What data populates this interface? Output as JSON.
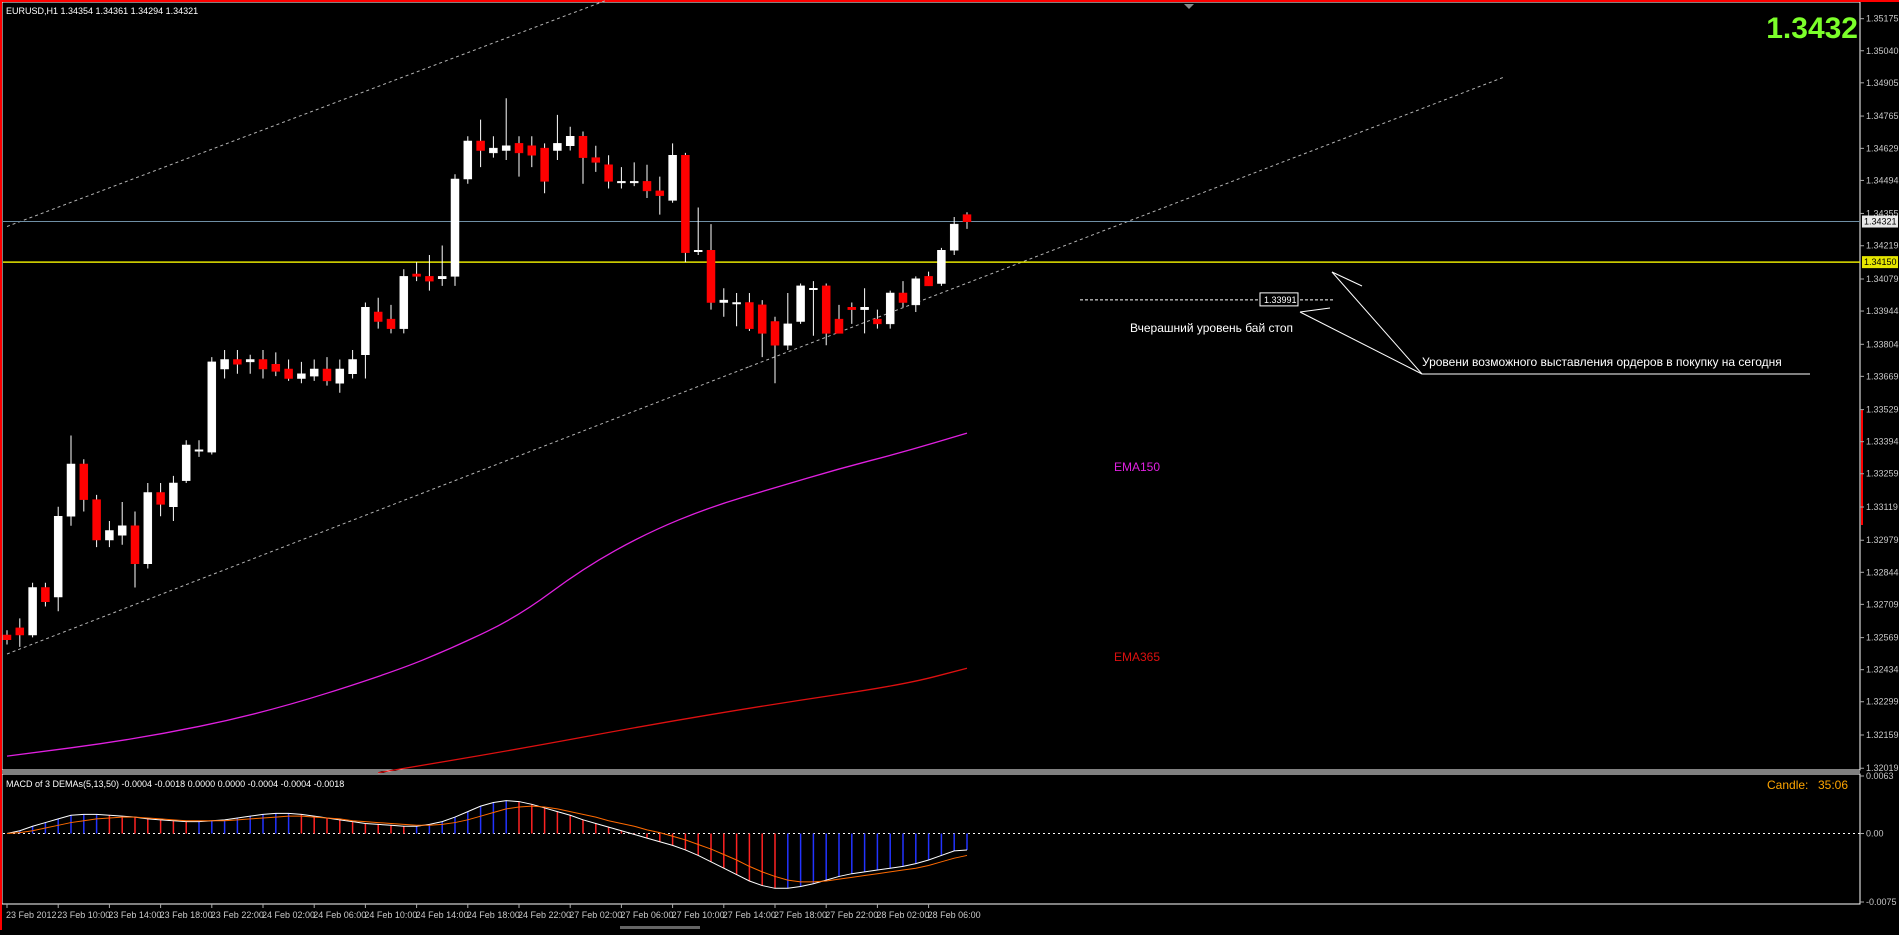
{
  "header": {
    "symbol_info": "EURUSD,H1  1.34354 1.34361 1.34294 1.34321",
    "big_price": "1.3432"
  },
  "colors": {
    "background": "#000000",
    "bull": "#ffffff",
    "bear": "#ff0000",
    "axis_text": "#c8c8c8",
    "channel": "#b4b4b4",
    "yellow_level": "#e6e600",
    "bid_line": "#6f8fa5",
    "ema150": "#e020e0",
    "ema365": "#dd1010",
    "macd_hist_pos": "#2233ff",
    "macd_hist_neg": "#ff2222",
    "macd_line": "#ffffff",
    "signal_line": "#ff6a00",
    "candle_timer": "#ffa500",
    "big_price": "#7cff2a"
  },
  "chart_data": {
    "type": "candlestick",
    "symbol": "EURUSD",
    "timeframe": "H1",
    "ylim": [
      1.3202,
      1.3522
    ],
    "y_ticks": [
      "1.35175",
      "1.35040",
      "1.34905",
      "1.34765",
      "1.34629",
      "1.34494",
      "1.34355",
      "1.34219",
      "1.34079",
      "1.33944",
      "1.33804",
      "1.33669",
      "1.33529",
      "1.33394",
      "1.33259",
      "1.33119",
      "1.32979",
      "1.32844",
      "1.32709",
      "1.32569",
      "1.32434",
      "1.32299",
      "1.32159",
      "1.32019"
    ],
    "x_ticks": [
      "23 Feb 2012",
      "23 Feb 10:00",
      "23 Feb 14:00",
      "23 Feb 18:00",
      "23 Feb 22:00",
      "24 Feb 02:00",
      "24 Feb 06:00",
      "24 Feb 10:00",
      "24 Feb 14:00",
      "24 Feb 18:00",
      "24 Feb 22:00",
      "27 Feb 02:00",
      "27 Feb 06:00",
      "27 Feb 10:00",
      "27 Feb 14:00",
      "27 Feb 18:00",
      "27 Feb 22:00",
      "28 Feb 02:00",
      "28 Feb 06:00"
    ],
    "candles": [
      [
        1.3258,
        1.326,
        1.3254,
        1.3256
      ],
      [
        1.3261,
        1.3265,
        1.3253,
        1.3258
      ],
      [
        1.3258,
        1.328,
        1.3257,
        1.3278
      ],
      [
        1.3278,
        1.328,
        1.327,
        1.3272
      ],
      [
        1.3274,
        1.3312,
        1.3268,
        1.3308
      ],
      [
        1.3308,
        1.3342,
        1.3304,
        1.333
      ],
      [
        1.333,
        1.3332,
        1.331,
        1.3315
      ],
      [
        1.3315,
        1.3317,
        1.3295,
        1.3298
      ],
      [
        1.3298,
        1.3306,
        1.3295,
        1.3302
      ],
      [
        1.33,
        1.3314,
        1.3296,
        1.3304
      ],
      [
        1.3304,
        1.331,
        1.3278,
        1.3288
      ],
      [
        1.3288,
        1.3322,
        1.3286,
        1.3318
      ],
      [
        1.3318,
        1.3322,
        1.3308,
        1.3313
      ],
      [
        1.3312,
        1.3325,
        1.3306,
        1.3322
      ],
      [
        1.3323,
        1.334,
        1.3322,
        1.3338
      ],
      [
        1.3336,
        1.334,
        1.3333,
        1.3336
      ],
      [
        1.3335,
        1.3375,
        1.3334,
        1.3373
      ],
      [
        1.337,
        1.3378,
        1.3366,
        1.3374
      ],
      [
        1.3374,
        1.3378,
        1.3368,
        1.3372
      ],
      [
        1.3373,
        1.3376,
        1.3368,
        1.3374
      ],
      [
        1.3374,
        1.3378,
        1.3366,
        1.337
      ],
      [
        1.3372,
        1.3377,
        1.3367,
        1.3369
      ],
      [
        1.337,
        1.3374,
        1.3365,
        1.3366
      ],
      [
        1.3366,
        1.3373,
        1.3364,
        1.3368
      ],
      [
        1.3367,
        1.3374,
        1.3365,
        1.337
      ],
      [
        1.337,
        1.3375,
        1.3363,
        1.3365
      ],
      [
        1.3364,
        1.3374,
        1.336,
        1.337
      ],
      [
        1.3368,
        1.3378,
        1.3366,
        1.3374
      ],
      [
        1.3376,
        1.3398,
        1.3366,
        1.3396
      ],
      [
        1.3394,
        1.34,
        1.3387,
        1.339
      ],
      [
        1.3391,
        1.3397,
        1.3385,
        1.3387
      ],
      [
        1.3387,
        1.3412,
        1.3385,
        1.3409
      ],
      [
        1.341,
        1.3415,
        1.3407,
        1.3409
      ],
      [
        1.3409,
        1.3418,
        1.3403,
        1.3407
      ],
      [
        1.3408,
        1.3422,
        1.3405,
        1.3409
      ],
      [
        1.3409,
        1.3452,
        1.3405,
        1.345
      ],
      [
        1.345,
        1.3468,
        1.3448,
        1.3466
      ],
      [
        1.3466,
        1.3475,
        1.3455,
        1.3462
      ],
      [
        1.3461,
        1.3468,
        1.3459,
        1.3463
      ],
      [
        1.3462,
        1.3484,
        1.3458,
        1.3464
      ],
      [
        1.3465,
        1.3468,
        1.3451,
        1.3461
      ],
      [
        1.3464,
        1.3468,
        1.3455,
        1.346
      ],
      [
        1.3463,
        1.3465,
        1.3444,
        1.3449
      ],
      [
        1.3462,
        1.3477,
        1.3458,
        1.3465
      ],
      [
        1.3464,
        1.3472,
        1.3462,
        1.3468
      ],
      [
        1.3468,
        1.347,
        1.3448,
        1.3459
      ],
      [
        1.3459,
        1.3464,
        1.3453,
        1.3457
      ],
      [
        1.3456,
        1.346,
        1.3446,
        1.3449
      ],
      [
        1.3449,
        1.3455,
        1.3446,
        1.3449
      ],
      [
        1.3449,
        1.3457,
        1.3447,
        1.3449
      ],
      [
        1.3449,
        1.3456,
        1.3442,
        1.3445
      ],
      [
        1.3445,
        1.3451,
        1.3435,
        1.3443
      ],
      [
        1.3441,
        1.3465,
        1.344,
        1.346
      ],
      [
        1.346,
        1.3461,
        1.3415,
        1.3419
      ],
      [
        1.342,
        1.3438,
        1.3418,
        1.342
      ],
      [
        1.342,
        1.3431,
        1.3395,
        1.3398
      ],
      [
        1.3398,
        1.3404,
        1.3392,
        1.3399
      ],
      [
        1.3398,
        1.3402,
        1.3388,
        1.3398
      ],
      [
        1.3398,
        1.3402,
        1.3386,
        1.3387
      ],
      [
        1.3397,
        1.3399,
        1.3375,
        1.3385
      ],
      [
        1.339,
        1.3392,
        1.3364,
        1.338
      ],
      [
        1.338,
        1.3402,
        1.3378,
        1.3389
      ],
      [
        1.339,
        1.3406,
        1.3389,
        1.3405
      ],
      [
        1.3404,
        1.3407,
        1.3384,
        1.3404
      ],
      [
        1.3405,
        1.3406,
        1.338,
        1.3385
      ],
      [
        1.3391,
        1.3397,
        1.3387,
        1.3385
      ],
      [
        1.3396,
        1.3398,
        1.3389,
        1.3395
      ],
      [
        1.3395,
        1.3404,
        1.3385,
        1.3396
      ],
      [
        1.3391,
        1.3395,
        1.3387,
        1.3389
      ],
      [
        1.3389,
        1.3403,
        1.3387,
        1.3402
      ],
      [
        1.3402,
        1.3407,
        1.3396,
        1.3398
      ],
      [
        1.3397,
        1.3409,
        1.3394,
        1.3408
      ],
      [
        1.3409,
        1.3411,
        1.3405,
        1.3405
      ],
      [
        1.3406,
        1.3421,
        1.3405,
        1.342
      ],
      [
        1.342,
        1.3434,
        1.3418,
        1.3431
      ],
      [
        1.3435,
        1.3436,
        1.3429,
        1.3432
      ]
    ],
    "ema150": [
      [
        0,
        1.3207
      ],
      [
        10,
        1.3214
      ],
      [
        20,
        1.3225
      ],
      [
        30,
        1.3242
      ],
      [
        35,
        1.3253
      ],
      [
        40,
        1.3266
      ],
      [
        45,
        1.3286
      ],
      [
        50,
        1.3301
      ],
      [
        55,
        1.3312
      ],
      [
        60,
        1.332
      ],
      [
        65,
        1.3328
      ],
      [
        70,
        1.3335
      ],
      [
        75,
        1.3343
      ]
    ],
    "ema365": [
      [
        29,
        1.32
      ],
      [
        40,
        1.321
      ],
      [
        50,
        1.322
      ],
      [
        60,
        1.3229
      ],
      [
        70,
        1.3237
      ],
      [
        75,
        1.3244
      ]
    ],
    "channel_upper": [
      [
        0,
        1.343
      ],
      [
        59,
        1.355
      ]
    ],
    "channel_lower_1": [
      [
        0,
        1.325
      ],
      [
        58,
        1.3371
      ]
    ],
    "channel_lower_2": [
      [
        58,
        1.3371
      ],
      [
        117,
        1.3493
      ]
    ],
    "yellow_level": 1.3415,
    "yellow_level_label": "1.34150",
    "bid_level": 1.34321,
    "bid_label": "1.34321",
    "stop_level": 1.33991,
    "stop_label": "1.33991",
    "annotations": {
      "ema150_label": "EMA150",
      "ema365_label": "EMA365",
      "stop_note": "Вчерашний уровень бай стоп",
      "orders_note": "Уровени возможного выставления ордеров в покупку на сегодня"
    }
  },
  "macd": {
    "title": "MACD of 3 DEMAs(5,13,50) -0.0004 -0.0018 0.0000 0.0000 -0.0004 -0.0004 -0.0018",
    "candle_label": "Candle:",
    "candle_time": "35:06",
    "y_ticks": [
      "0.0063",
      "0.00",
      "-0.0075"
    ],
    "ylim": [
      -0.0075,
      0.0063
    ],
    "hist": [
      0.0,
      0.0003,
      0.0008,
      0.0012,
      0.0016,
      0.002,
      0.0021,
      0.0021,
      0.002,
      0.0019,
      0.0018,
      0.0016,
      0.0015,
      0.0014,
      0.0013,
      0.0013,
      0.0014,
      0.0015,
      0.0017,
      0.0019,
      0.0021,
      0.0022,
      0.0022,
      0.0021,
      0.0019,
      0.0017,
      0.0015,
      0.0013,
      0.0011,
      0.001,
      0.0009,
      0.0008,
      0.0008,
      0.001,
      0.0013,
      0.0018,
      0.0024,
      0.003,
      0.0034,
      0.0036,
      0.0035,
      0.0032,
      0.0028,
      0.0024,
      0.002,
      0.0015,
      0.0011,
      0.0007,
      0.0003,
      -0.0001,
      -0.0005,
      -0.0009,
      -0.0013,
      -0.0018,
      -0.0024,
      -0.0031,
      -0.0038,
      -0.0045,
      -0.0052,
      -0.0057,
      -0.006,
      -0.006,
      -0.0058,
      -0.0055,
      -0.0051,
      -0.0047,
      -0.0044,
      -0.0042,
      -0.004,
      -0.0038,
      -0.0036,
      -0.0033,
      -0.0029,
      -0.0024,
      -0.0019,
      -0.0018
    ],
    "signal": [
      0.0,
      0.0001,
      0.0003,
      0.0006,
      0.0009,
      0.0012,
      0.0014,
      0.0016,
      0.0017,
      0.0018,
      0.0018,
      0.0017,
      0.0016,
      0.0015,
      0.0014,
      0.0014,
      0.0014,
      0.0014,
      0.0015,
      0.0016,
      0.0017,
      0.0018,
      0.0019,
      0.0019,
      0.0018,
      0.0017,
      0.0016,
      0.0014,
      0.0013,
      0.0012,
      0.0011,
      0.001,
      0.0009,
      0.0009,
      0.001,
      0.0012,
      0.0015,
      0.0019,
      0.0023,
      0.0027,
      0.0029,
      0.003,
      0.0029,
      0.0027,
      0.0024,
      0.0021,
      0.0018,
      0.0014,
      0.0011,
      0.0008,
      0.0004,
      0.0001,
      -0.0003,
      -0.0007,
      -0.0012,
      -0.0017,
      -0.0023,
      -0.0029,
      -0.0036,
      -0.0042,
      -0.0047,
      -0.0051,
      -0.0053,
      -0.0053,
      -0.0052,
      -0.005,
      -0.0048,
      -0.0046,
      -0.0044,
      -0.0042,
      -0.004,
      -0.0038,
      -0.0035,
      -0.0031,
      -0.0027,
      -0.0024
    ]
  }
}
